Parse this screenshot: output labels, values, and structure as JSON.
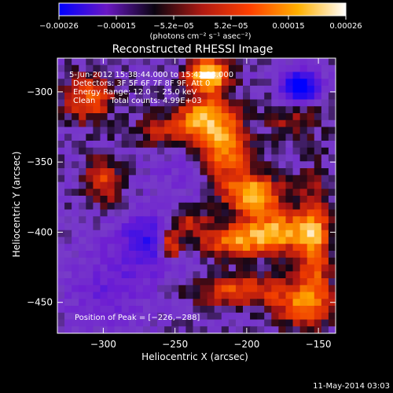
{
  "chart_data": {
    "type": "heatmap",
    "title": "Reconstructed RHESSI Image",
    "xlabel": "Heliocentric X (arcsec)",
    "ylabel": "Heliocentric Y (arcsec)",
    "xlim": [
      -332,
      -138
    ],
    "ylim": [
      -472,
      -276
    ],
    "x_ticks": [
      {
        "value": -300,
        "label": "−300"
      },
      {
        "value": -250,
        "label": "−250"
      },
      {
        "value": -200,
        "label": "−200"
      },
      {
        "value": -150,
        "label": "−150"
      }
    ],
    "y_ticks": [
      {
        "value": -300,
        "label": "−300"
      },
      {
        "value": -350,
        "label": "−350"
      },
      {
        "value": -400,
        "label": "−400"
      },
      {
        "value": -450,
        "label": "−450"
      }
    ],
    "colorbar": {
      "min": -0.00026,
      "max": 0.00026,
      "tick_labels": [
        "−0.00026",
        "−0.00015",
        "−5.2e−05",
        "5.2e−05",
        "0.00015",
        "0.00026"
      ],
      "unit_label": "(photons cm⁻² s⁻¹ asec⁻²)",
      "colors": [
        "#0000ff",
        "#6a18c4",
        "#0a0410",
        "#b01a12",
        "#ff4000",
        "#ffb000",
        "#ffffff"
      ]
    },
    "annotations": [
      "5-Jun-2012 15:38:44.000 to 15:42:38.000",
      "Detectors: 3F 5F 6F 7F 8F 9F, Att 0",
      "Energy Range: 12.0 − 25.0 keV",
      "Clean      Total counts: 4.99E+03"
    ],
    "peak_label": "Position of Peak = [−226,−288]",
    "peak_position": [
      -226,
      -288
    ]
  },
  "footer_timestamp": "11-May-2014 03:03"
}
